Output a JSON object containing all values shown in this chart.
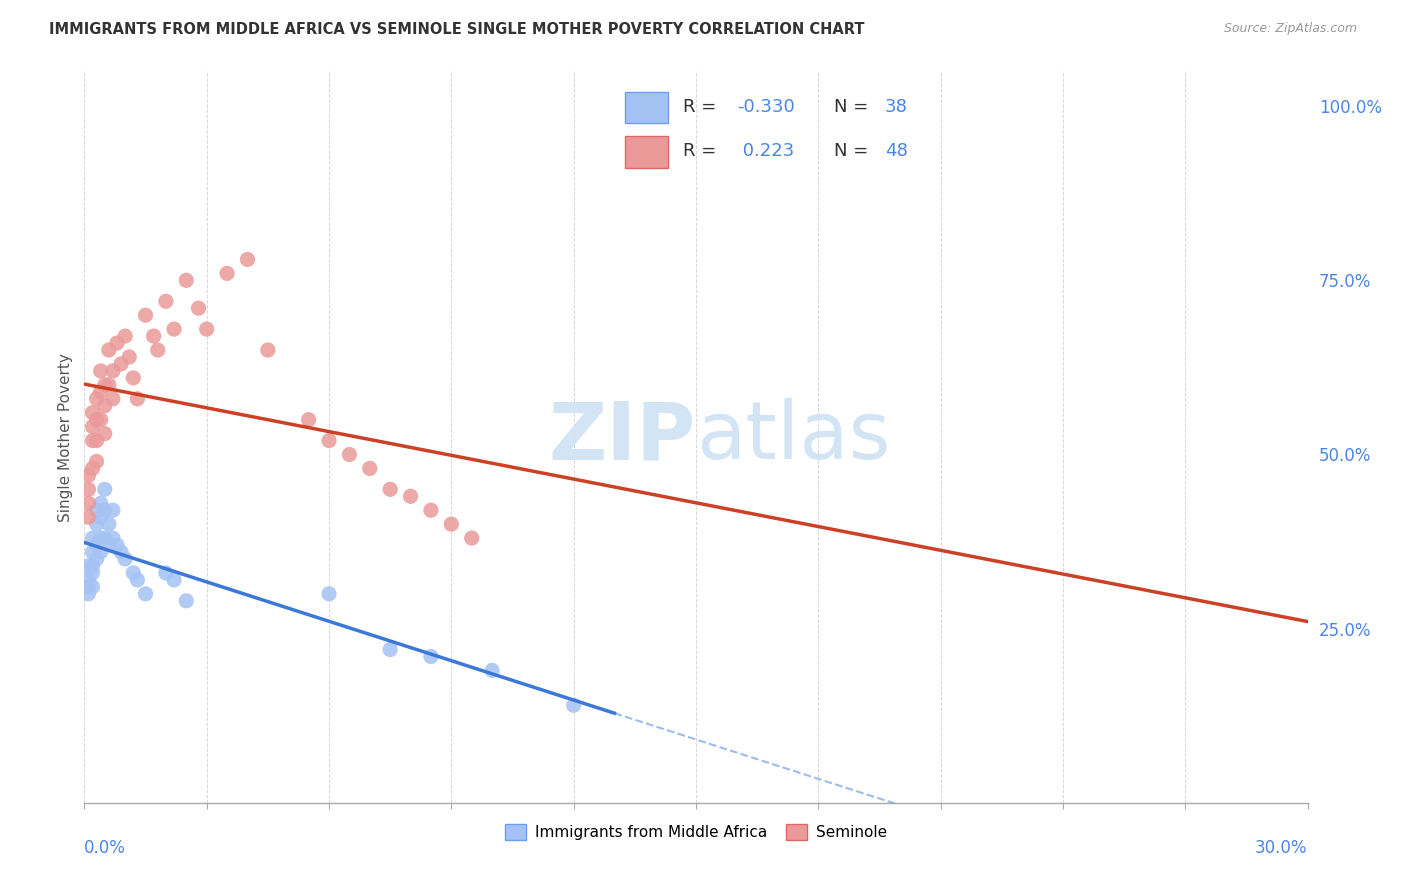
{
  "title": "IMMIGRANTS FROM MIDDLE AFRICA VS SEMINOLE SINGLE MOTHER POVERTY CORRELATION CHART",
  "source": "Source: ZipAtlas.com",
  "ylabel": "Single Mother Poverty",
  "right_yticks": [
    0.25,
    0.5,
    0.75,
    1.0
  ],
  "right_yticklabels": [
    "25.0%",
    "50.0%",
    "75.0%",
    "100.0%"
  ],
  "legend1_r": "-0.330",
  "legend1_n": "38",
  "legend2_r": "0.223",
  "legend2_n": "48",
  "blue_fill": "#a4c2f4",
  "blue_edge": "#6d9eeb",
  "blue_line": "#3c78d8",
  "pink_fill": "#ea9999",
  "pink_edge": "#e06666",
  "pink_line": "#cc4125",
  "legend_text_color": "#4a86e8",
  "label_color": "#4a86e8",
  "watermark_color": "#cfe2f3",
  "grid_color": "#cccccc",
  "text_dark": "#555555",
  "xlim": [
    0.0,
    0.3
  ],
  "ylim": [
    0.0,
    1.05
  ],
  "blue_x": [
    0.001,
    0.001,
    0.001,
    0.001,
    0.002,
    0.002,
    0.002,
    0.002,
    0.002,
    0.003,
    0.003,
    0.003,
    0.003,
    0.004,
    0.004,
    0.004,
    0.004,
    0.005,
    0.005,
    0.005,
    0.006,
    0.006,
    0.007,
    0.007,
    0.008,
    0.009,
    0.01,
    0.012,
    0.013,
    0.015,
    0.02,
    0.022,
    0.025,
    0.06,
    0.075,
    0.085,
    0.1,
    0.12
  ],
  "blue_y": [
    0.34,
    0.32,
    0.31,
    0.3,
    0.38,
    0.36,
    0.34,
    0.33,
    0.31,
    0.42,
    0.4,
    0.37,
    0.35,
    0.43,
    0.41,
    0.38,
    0.36,
    0.45,
    0.42,
    0.38,
    0.4,
    0.37,
    0.42,
    0.38,
    0.37,
    0.36,
    0.35,
    0.33,
    0.32,
    0.3,
    0.33,
    0.32,
    0.29,
    0.3,
    0.22,
    0.21,
    0.19,
    0.14
  ],
  "pink_x": [
    0.001,
    0.001,
    0.001,
    0.001,
    0.002,
    0.002,
    0.002,
    0.002,
    0.003,
    0.003,
    0.003,
    0.003,
    0.004,
    0.004,
    0.004,
    0.005,
    0.005,
    0.005,
    0.006,
    0.006,
    0.007,
    0.007,
    0.008,
    0.009,
    0.01,
    0.011,
    0.012,
    0.013,
    0.015,
    0.017,
    0.018,
    0.02,
    0.022,
    0.025,
    0.028,
    0.03,
    0.035,
    0.04,
    0.045,
    0.055,
    0.06,
    0.065,
    0.07,
    0.075,
    0.08,
    0.085,
    0.09,
    0.095
  ],
  "pink_y": [
    0.47,
    0.45,
    0.43,
    0.41,
    0.56,
    0.54,
    0.52,
    0.48,
    0.58,
    0.55,
    0.52,
    0.49,
    0.62,
    0.59,
    0.55,
    0.6,
    0.57,
    0.53,
    0.65,
    0.6,
    0.62,
    0.58,
    0.66,
    0.63,
    0.67,
    0.64,
    0.61,
    0.58,
    0.7,
    0.67,
    0.65,
    0.72,
    0.68,
    0.75,
    0.71,
    0.68,
    0.76,
    0.78,
    0.65,
    0.55,
    0.52,
    0.5,
    0.48,
    0.45,
    0.44,
    0.42,
    0.4,
    0.38
  ]
}
